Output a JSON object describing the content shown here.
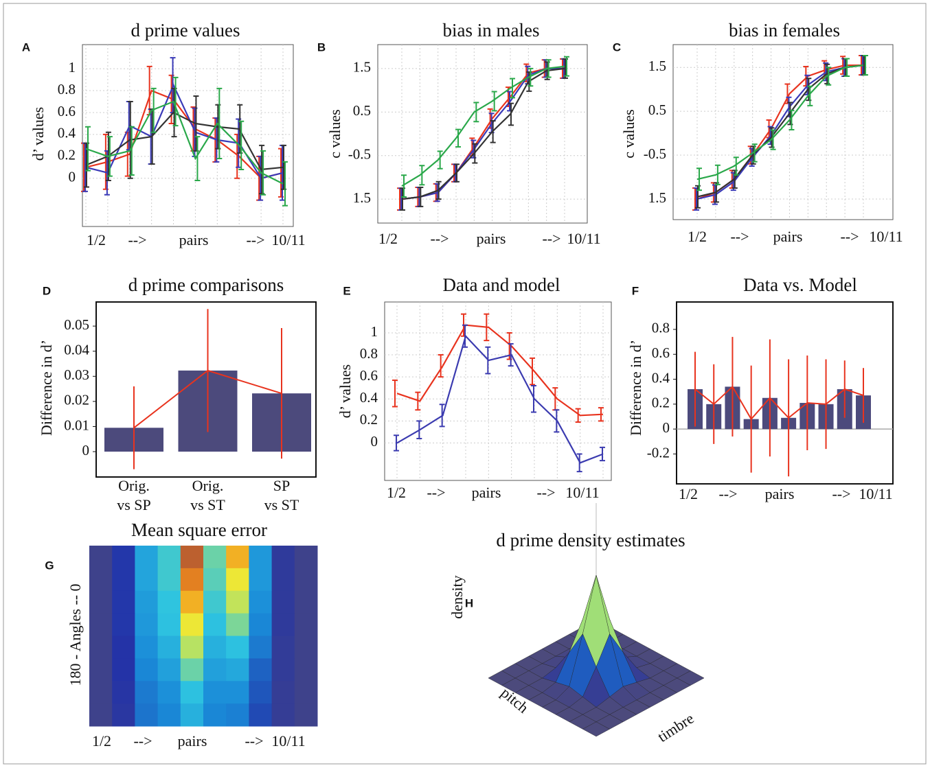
{
  "chart_data": [
    {
      "type": "line",
      "label": "A",
      "title": "d prime values",
      "ylabel": "d’ values",
      "xlabel": [
        "1/2",
        "-->",
        "pairs",
        "-->",
        "10/11"
      ],
      "categories": [
        null,
        null,
        null,
        null,
        null,
        null,
        null,
        null,
        null,
        null
      ],
      "ylim": [
        -0.44,
        1.22
      ],
      "yticks": [
        0,
        0.2,
        0.4,
        0.6,
        0.8,
        1
      ],
      "grid": true,
      "series": [
        {
          "color": "#e8331e",
          "values": [
            0.1,
            0.15,
            0.22,
            0.8,
            0.72,
            0.45,
            0.35,
            0.2,
            0.0,
            0.05
          ],
          "errors": [
            0.22,
            0.25,
            0.2,
            0.22,
            0.22,
            0.2,
            0.2,
            0.2,
            0.2,
            0.22
          ]
        },
        {
          "color": "#3a3ab8",
          "values": [
            0.1,
            0.05,
            0.48,
            0.38,
            0.85,
            0.42,
            0.35,
            0.32,
            0.0,
            0.05
          ],
          "errors": [
            0.22,
            0.2,
            0.22,
            0.25,
            0.25,
            0.22,
            0.2,
            0.22,
            0.2,
            0.25
          ]
        },
        {
          "color": "#333333",
          "values": [
            0.12,
            0.2,
            0.35,
            0.38,
            0.6,
            0.5,
            0.47,
            0.45,
            0.08,
            0.1
          ],
          "errors": [
            0.2,
            0.22,
            0.35,
            0.25,
            0.22,
            0.25,
            0.2,
            0.22,
            0.22,
            0.2
          ]
        },
        {
          "color": "#2aa84a",
          "values": [
            0.27,
            0.2,
            0.25,
            0.62,
            0.7,
            0.18,
            0.5,
            0.3,
            0.05,
            -0.05
          ],
          "errors": [
            0.2,
            0.18,
            0.22,
            0.2,
            0.22,
            0.2,
            0.32,
            0.22,
            0.2,
            0.2
          ]
        }
      ]
    },
    {
      "type": "line",
      "label": "B",
      "title": "bias in males",
      "ylabel": "c values",
      "xlabel": [
        "1/2",
        "-->",
        "pairs",
        "-->",
        "10/11"
      ],
      "categories": [
        null,
        null,
        null,
        null,
        null,
        null,
        null,
        null,
        null,
        null
      ],
      "ylim": [
        -2.05,
        2.05
      ],
      "yticks": [
        {
          "value": -1.5,
          "label": "1.5"
        },
        -0.5,
        0.5,
        1.5
      ],
      "grid": true,
      "series": [
        {
          "color": "#e8331e",
          "values": [
            -1.5,
            -1.45,
            -1.35,
            -0.9,
            -0.3,
            0.35,
            0.85,
            1.4,
            1.5,
            1.5
          ],
          "errors": [
            0.25,
            0.22,
            0.2,
            0.2,
            0.2,
            0.22,
            0.22,
            0.2,
            0.2,
            0.22
          ]
        },
        {
          "color": "#3a3ab8",
          "values": [
            -1.5,
            -1.45,
            -1.35,
            -0.9,
            -0.35,
            0.25,
            0.75,
            1.35,
            1.5,
            1.5
          ],
          "errors": [
            0.25,
            0.22,
            0.2,
            0.2,
            0.2,
            0.22,
            0.22,
            0.2,
            0.2,
            0.22
          ]
        },
        {
          "color": "#333333",
          "values": [
            -1.5,
            -1.45,
            -1.3,
            -0.9,
            -0.45,
            0.05,
            0.45,
            1.2,
            1.45,
            1.5
          ],
          "errors": [
            0.25,
            0.22,
            0.2,
            0.2,
            0.22,
            0.25,
            0.25,
            0.22,
            0.2,
            0.22
          ]
        },
        {
          "color": "#2aa84a",
          "values": [
            -1.2,
            -0.95,
            -0.6,
            -0.1,
            0.5,
            0.75,
            1.05,
            1.3,
            1.5,
            1.55
          ],
          "errors": [
            0.25,
            0.22,
            0.2,
            0.2,
            0.22,
            0.22,
            0.22,
            0.2,
            0.2,
            0.22
          ]
        }
      ]
    },
    {
      "type": "line",
      "label": "C",
      "title": "bias in females",
      "ylabel": "c values",
      "xlabel": [
        "1/2",
        "-->",
        "pairs",
        "-->",
        "10/11"
      ],
      "categories": [
        null,
        null,
        null,
        null,
        null,
        null,
        null,
        null,
        null,
        null
      ],
      "ylim": [
        -1.97,
        2.02
      ],
      "yticks": [
        {
          "value": -1.5,
          "label": "1.5"
        },
        -0.5,
        0.5,
        1.5
      ],
      "grid": true,
      "series": [
        {
          "color": "#e8331e",
          "values": [
            -1.5,
            -1.35,
            -1.05,
            -0.5,
            0.1,
            0.9,
            1.3,
            1.45,
            1.55,
            1.55
          ],
          "errors": [
            0.25,
            0.22,
            0.2,
            0.2,
            0.2,
            0.22,
            0.22,
            0.2,
            0.2,
            0.22
          ]
        },
        {
          "color": "#3a3ab8",
          "values": [
            -1.5,
            -1.4,
            -1.1,
            -0.55,
            -0.05,
            0.6,
            1.1,
            1.4,
            1.5,
            1.55
          ],
          "errors": [
            0.25,
            0.22,
            0.2,
            0.2,
            0.2,
            0.22,
            0.22,
            0.2,
            0.2,
            0.22
          ]
        },
        {
          "color": "#333333",
          "values": [
            -1.45,
            -1.35,
            -1.05,
            -0.5,
            -0.1,
            0.45,
            1.0,
            1.35,
            1.5,
            1.55
          ],
          "errors": [
            0.25,
            0.22,
            0.2,
            0.2,
            0.22,
            0.25,
            0.25,
            0.22,
            0.2,
            0.22
          ]
        },
        {
          "color": "#2aa84a",
          "values": [
            -1.05,
            -0.95,
            -0.75,
            -0.45,
            -0.15,
            0.3,
            0.85,
            1.3,
            1.5,
            1.55
          ],
          "errors": [
            0.25,
            0.22,
            0.2,
            0.2,
            0.22,
            0.22,
            0.22,
            0.2,
            0.2,
            0.22
          ]
        }
      ]
    },
    {
      "type": "bar",
      "label": "D",
      "title": "d prime comparisons",
      "ylabel": "Difference in d’",
      "categories": [
        [
          "Orig.",
          "vs SP"
        ],
        [
          "Orig.",
          "vs ST"
        ],
        [
          "SP",
          "vs ST"
        ]
      ],
      "ylim": [
        -0.0101,
        0.0596
      ],
      "yticks": [
        0,
        0.01,
        0.02,
        0.03,
        0.04,
        0.05
      ],
      "color": "#4c4a7c",
      "error_color": "#e8331e",
      "values": [
        0.0095,
        0.0323,
        0.0232
      ],
      "errors": [
        0.0165,
        0.0245,
        0.026
      ]
    },
    {
      "type": "line",
      "label": "E",
      "title": "Data and model",
      "ylabel": "d’ values",
      "xlabel": [
        "1/2",
        "-->",
        "pairs",
        "-->",
        "10/11"
      ],
      "categories": [
        null,
        null,
        null,
        null,
        null,
        null,
        null,
        null,
        null,
        null
      ],
      "ylim": [
        -0.34,
        1.28
      ],
      "yticks": [
        0,
        0.2,
        0.4,
        0.6,
        0.8,
        1
      ],
      "grid": true,
      "series": [
        {
          "color": "#e8331e",
          "values": [
            0.45,
            0.38,
            0.7,
            1.07,
            1.05,
            0.88,
            0.65,
            0.4,
            0.25,
            0.26
          ],
          "errors": [
            0.12,
            0.08,
            0.1,
            0.1,
            0.12,
            0.12,
            0.12,
            0.1,
            0.06,
            0.06
          ]
        },
        {
          "color": "#3b3bb0",
          "values": [
            0,
            0.12,
            0.25,
            0.97,
            0.75,
            0.8,
            0.4,
            0.2,
            -0.18,
            -0.1
          ],
          "errors": [
            0.07,
            0.08,
            0.1,
            0.1,
            0.12,
            0.1,
            0.12,
            0.1,
            0.08,
            0.06
          ]
        }
      ]
    },
    {
      "type": "bar",
      "label": "F",
      "title": "Data vs. Model",
      "ylabel": "Difference in d’",
      "xlabel": [
        "1/2",
        "-->",
        "pairs",
        "-->",
        "10/11"
      ],
      "categories": [
        null,
        null,
        null,
        null,
        null,
        null,
        null,
        null,
        null,
        null
      ],
      "ylim": [
        -0.44,
        1.02
      ],
      "yticks": [
        -0.2,
        0,
        0.2,
        0.4,
        0.6,
        0.8
      ],
      "zero_line": true,
      "color": "#4c4a7c",
      "error_color": "#e8331e",
      "values": [
        0.32,
        0.2,
        0.34,
        0.08,
        0.25,
        0.09,
        0.21,
        0.2,
        0.32,
        0.27
      ],
      "errors": [
        0.3,
        0.32,
        0.4,
        0.43,
        0.47,
        0.47,
        0.38,
        0.36,
        0.23,
        0.22
      ]
    },
    {
      "type": "heatmap",
      "label": "G",
      "title": "Mean square error",
      "ylabel": "180  -  Angles -- 0",
      "xlabel": [
        "1/2",
        "-->",
        "pairs",
        "-->",
        "10/11"
      ],
      "zlim": [
        0,
        1
      ],
      "colormap": [
        "#4c4a7c",
        "#2333a8",
        "#1a8ad8",
        "#2ec4e0",
        "#a8e070",
        "#f5e830",
        "#f08a1c",
        "#a04a3a"
      ],
      "z": [
        [
          0.05,
          0.15,
          0.35,
          0.45,
          0.95,
          0.5,
          0.8,
          0.32,
          0.1,
          0.05
        ],
        [
          0.05,
          0.15,
          0.35,
          0.45,
          0.88,
          0.48,
          0.7,
          0.32,
          0.1,
          0.05
        ],
        [
          0.05,
          0.15,
          0.33,
          0.43,
          0.8,
          0.45,
          0.62,
          0.3,
          0.1,
          0.05
        ],
        [
          0.05,
          0.15,
          0.32,
          0.42,
          0.7,
          0.42,
          0.52,
          0.28,
          0.1,
          0.05
        ],
        [
          0.05,
          0.14,
          0.3,
          0.38,
          0.6,
          0.38,
          0.42,
          0.26,
          0.09,
          0.05
        ],
        [
          0.05,
          0.14,
          0.28,
          0.34,
          0.5,
          0.34,
          0.36,
          0.22,
          0.09,
          0.05
        ],
        [
          0.05,
          0.13,
          0.26,
          0.3,
          0.42,
          0.3,
          0.3,
          0.2,
          0.08,
          0.05
        ],
        [
          0.05,
          0.12,
          0.25,
          0.28,
          0.38,
          0.28,
          0.27,
          0.18,
          0.08,
          0.05
        ]
      ]
    },
    {
      "type": "surface",
      "label": "H",
      "title": "d prime density estimates",
      "zlabel": "density",
      "xlabel": "pitch",
      "ylabel": "timbre",
      "zlim": [
        0,
        1
      ],
      "colormap": [
        "#4c4a7c",
        "#2333a8",
        "#1a8ad8",
        "#2ec4e0",
        "#a8e070",
        "#f5e830",
        "#f08a1c",
        "#a04a3a"
      ],
      "z": [
        [
          0,
          0,
          0,
          0,
          0,
          0,
          0,
          0,
          0
        ],
        [
          0,
          0,
          0,
          0,
          0,
          0,
          0,
          0,
          0
        ],
        [
          0,
          0,
          0,
          0.03,
          0.06,
          0.03,
          0,
          0,
          0
        ],
        [
          0,
          0,
          0.03,
          0.25,
          0.5,
          0.25,
          0.03,
          0,
          0
        ],
        [
          0,
          0,
          0.06,
          0.5,
          1,
          0.5,
          0.06,
          0,
          0
        ],
        [
          0,
          0,
          0.03,
          0.25,
          0.5,
          0.25,
          0.03,
          0,
          0
        ],
        [
          0,
          0,
          0,
          0.03,
          0.06,
          0.03,
          0,
          0,
          0
        ],
        [
          0,
          0,
          0,
          0,
          0,
          0,
          0,
          0,
          0
        ],
        [
          0,
          0,
          0,
          0,
          0,
          0,
          0,
          0,
          0
        ]
      ]
    }
  ]
}
